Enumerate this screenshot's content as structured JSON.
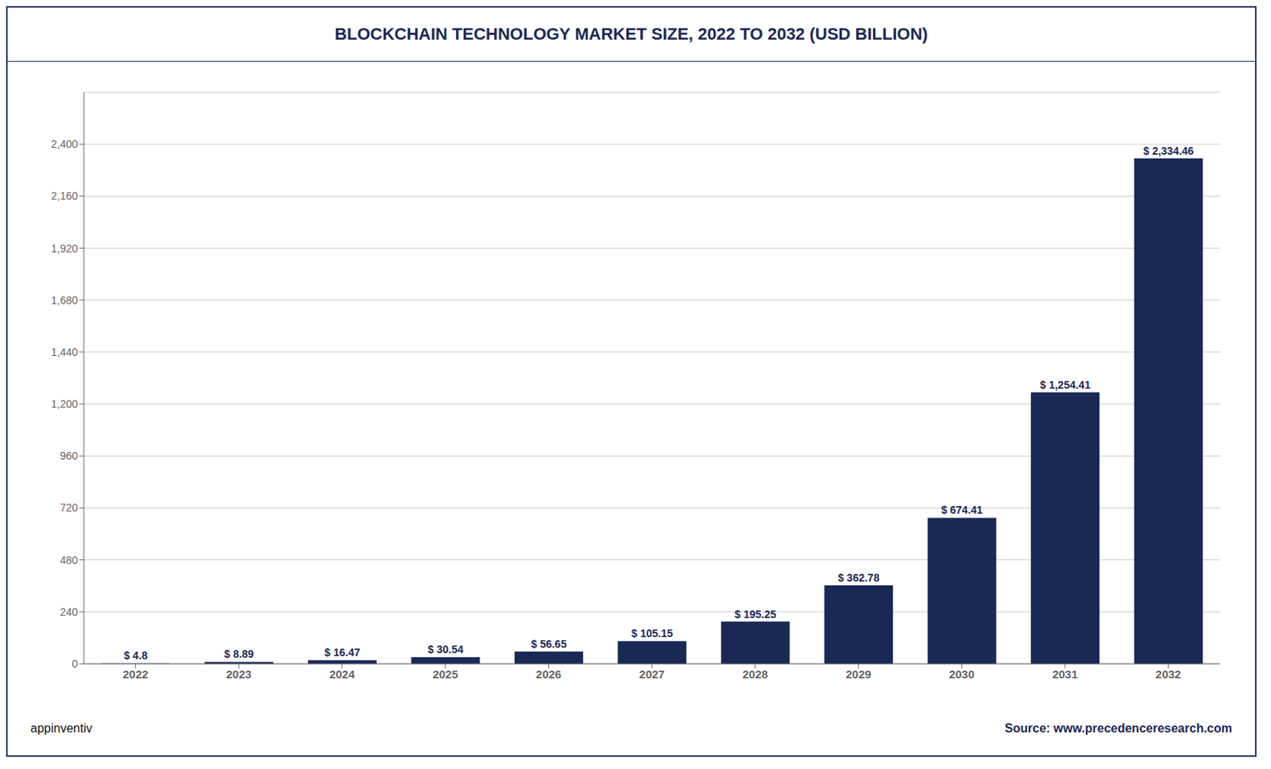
{
  "chart_data": {
    "type": "bar",
    "title": "BLOCKCHAIN TECHNOLOGY MARKET SIZE, 2022 TO 2032 (USD BILLION)",
    "categories": [
      "2022",
      "2023",
      "2024",
      "2025",
      "2026",
      "2027",
      "2028",
      "2029",
      "2030",
      "2031",
      "2032"
    ],
    "values": [
      4.8,
      8.89,
      16.47,
      30.54,
      56.65,
      105.15,
      195.25,
      362.78,
      674.41,
      1254.41,
      2334.46
    ],
    "value_labels": [
      "$ 4.8",
      "$ 8.89",
      "$ 16.47",
      "$ 30.54",
      "$ 56.65",
      "$ 105.15",
      "$ 195.25",
      "$ 362.78",
      "$ 674.41",
      "$ 1,254.41",
      "$ 2,334.46"
    ],
    "data_labels": true,
    "colors": [
      "#8bafd4",
      "#1a2856",
      "#1a2856",
      "#1a2856",
      "#1a2856",
      "#1a2856",
      "#1a2856",
      "#1a2856",
      "#1a2856",
      "#1a2856",
      "#1a2856"
    ],
    "ylim": [
      0,
      2640
    ],
    "yticks": [
      0,
      240,
      480,
      720,
      960,
      {
        "value": 1200,
        "label": "1,200"
      },
      {
        "value": 1440,
        "label": "1,440"
      },
      {
        "value": 1680,
        "label": "1,680"
      },
      {
        "value": 1920,
        "label": "1,920"
      },
      {
        "value": 2160,
        "label": "2,160"
      },
      {
        "value": 2400,
        "label": "2,400"
      }
    ],
    "grid": true,
    "annotations": [
      "Source: www.precedenceresearch.com",
      "appinventiv"
    ]
  }
}
